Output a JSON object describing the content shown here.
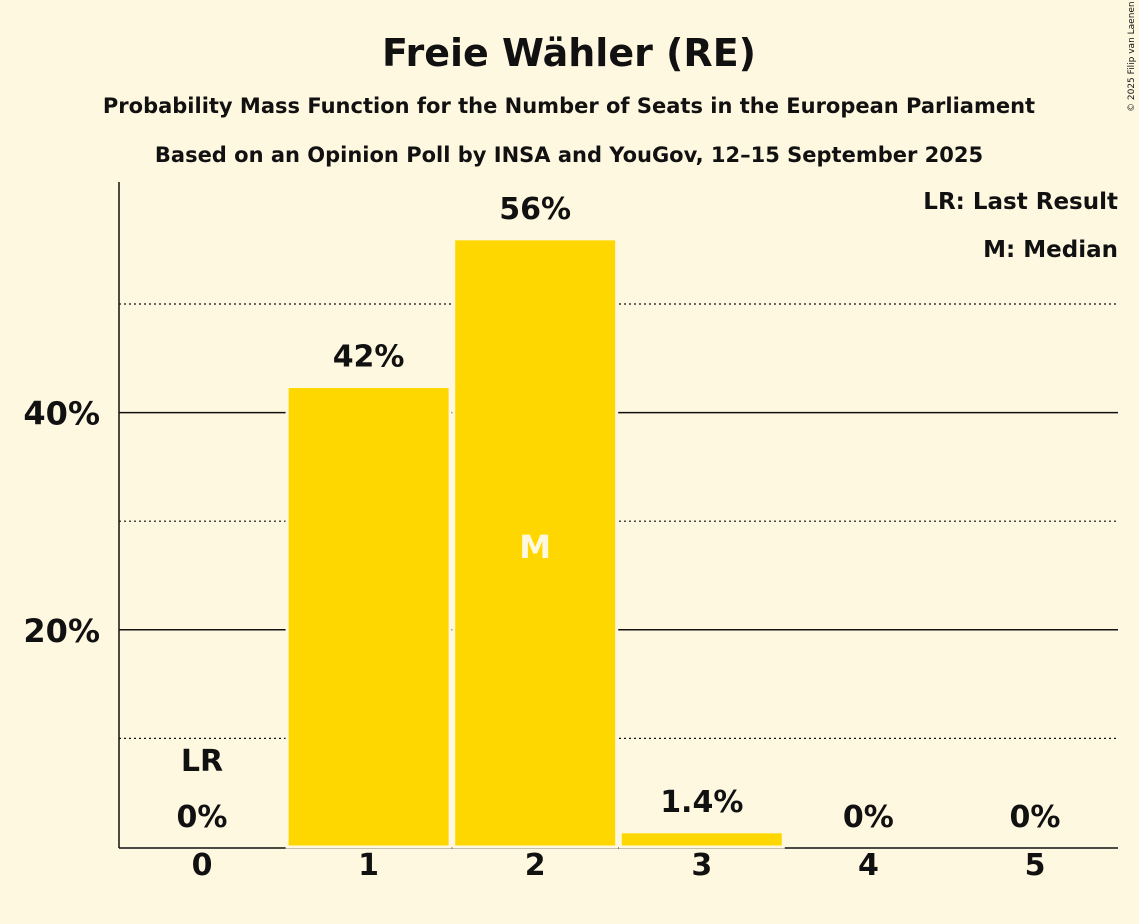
{
  "chart_data": {
    "type": "bar",
    "title": "Freie Wähler (RE)",
    "subtitle": "Probability Mass Function for the Number of Seats in the European Parliament",
    "subtitle2": "Based on an Opinion Poll by INSA and YouGov, 12–15 September 2025",
    "copyright": "© 2025 Filip van Laenen",
    "categories": [
      "0",
      "1",
      "2",
      "3",
      "4",
      "5"
    ],
    "values": [
      0,
      42.4,
      56.0,
      1.4,
      0,
      0
    ],
    "value_labels": [
      "0%",
      "42%",
      "56%",
      "1.4%",
      "0%",
      "0%"
    ],
    "ylim": [
      0,
      60
    ],
    "yticks": [
      {
        "value": 20,
        "label": "20%"
      },
      {
        "value": 40,
        "label": "40%"
      }
    ],
    "minor_gridlines": [
      10,
      30,
      50
    ],
    "last_result_index": 0,
    "last_result_marker": "LR",
    "median_index": 2,
    "median_marker": "M",
    "legend": [
      "LR: Last Result",
      "M: Median"
    ],
    "legend_position": "top-right",
    "bar_color": "#ffd700",
    "background": "#fff8e1"
  }
}
